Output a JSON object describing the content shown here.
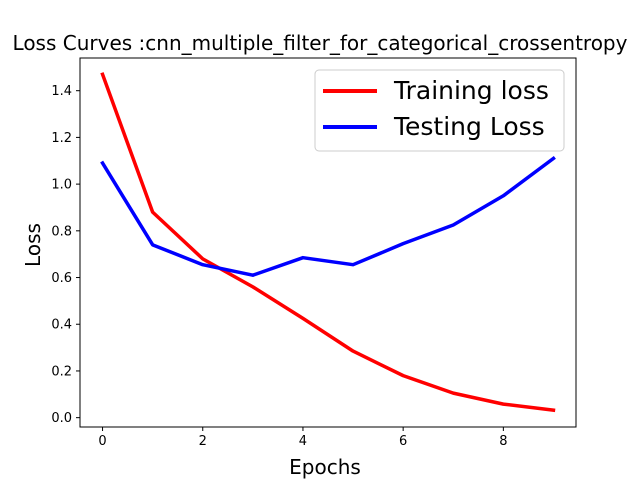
{
  "chart_data": {
    "type": "line",
    "title": "Loss Curves :cnn_multiple_filter_for_categorical_crossentropy",
    "xlabel": "Epochs",
    "ylabel": "Loss",
    "xlim": [
      -0.45,
      9.45
    ],
    "ylim": [
      -0.04,
      1.54
    ],
    "x_ticks": [
      0,
      2,
      4,
      6,
      8
    ],
    "y_ticks": [
      0.0,
      0.2,
      0.4,
      0.6,
      0.8,
      1.0,
      1.2,
      1.4
    ],
    "x_tick_labels": [
      "0",
      "2",
      "4",
      "6",
      "8"
    ],
    "y_tick_labels": [
      "0.0",
      "0.2",
      "0.4",
      "0.6",
      "0.8",
      "1.0",
      "1.2",
      "1.4"
    ],
    "grid": false,
    "legend_position": "upper-right",
    "x": [
      0,
      1,
      2,
      3,
      4,
      5,
      6,
      7,
      8,
      9
    ],
    "series": [
      {
        "name": "Training loss",
        "color": "#ff0000",
        "values": [
          1.47,
          0.88,
          0.68,
          0.56,
          0.425,
          0.285,
          0.18,
          0.105,
          0.058,
          0.032
        ]
      },
      {
        "name": "Testing Loss",
        "color": "#0000ff",
        "values": [
          1.09,
          0.74,
          0.655,
          0.61,
          0.685,
          0.655,
          0.745,
          0.825,
          0.95,
          1.11
        ]
      }
    ]
  }
}
